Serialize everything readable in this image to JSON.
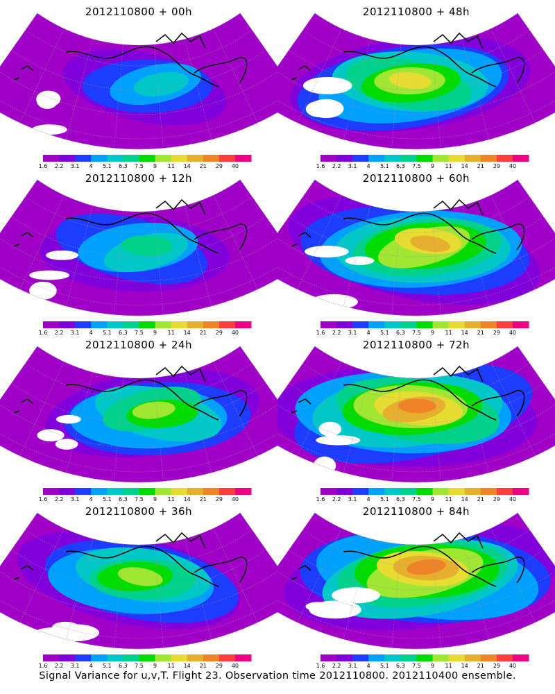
{
  "panels": [
    {
      "id": "p00",
      "title": "2012110800 + 00h",
      "intensity": 0.15
    },
    {
      "id": "p48",
      "title": "2012110800 + 48h",
      "intensity": 0.65
    },
    {
      "id": "p12",
      "title": "2012110800 + 12h",
      "intensity": 0.3
    },
    {
      "id": "p60",
      "title": "2012110800 + 60h",
      "intensity": 0.75
    },
    {
      "id": "p24",
      "title": "2012110800 + 24h",
      "intensity": 0.45
    },
    {
      "id": "p72",
      "title": "2012110800 + 72h",
      "intensity": 0.82
    },
    {
      "id": "p36",
      "title": "2012110800 + 36h",
      "intensity": 0.55
    },
    {
      "id": "p84",
      "title": "2012110800 + 84h",
      "intensity": 0.9
    }
  ],
  "legend": {
    "labels": [
      "1.6",
      "2.2",
      "3.1",
      "4",
      "5.1",
      "6.3",
      "7.5",
      "9",
      "11",
      "14",
      "21",
      "29",
      "40"
    ],
    "colors": [
      "#a000c8",
      "#8200dc",
      "#1e3cff",
      "#00a0ff",
      "#00c8c8",
      "#00d28c",
      "#00dc00",
      "#a0e632",
      "#e6dc32",
      "#e6af2d",
      "#f08228",
      "#fa3c3c",
      "#f00082"
    ]
  },
  "caption": "Signal Variance for u,v,T. Flight 23. Observation time 2012110800. 2012110400 ensemble."
}
